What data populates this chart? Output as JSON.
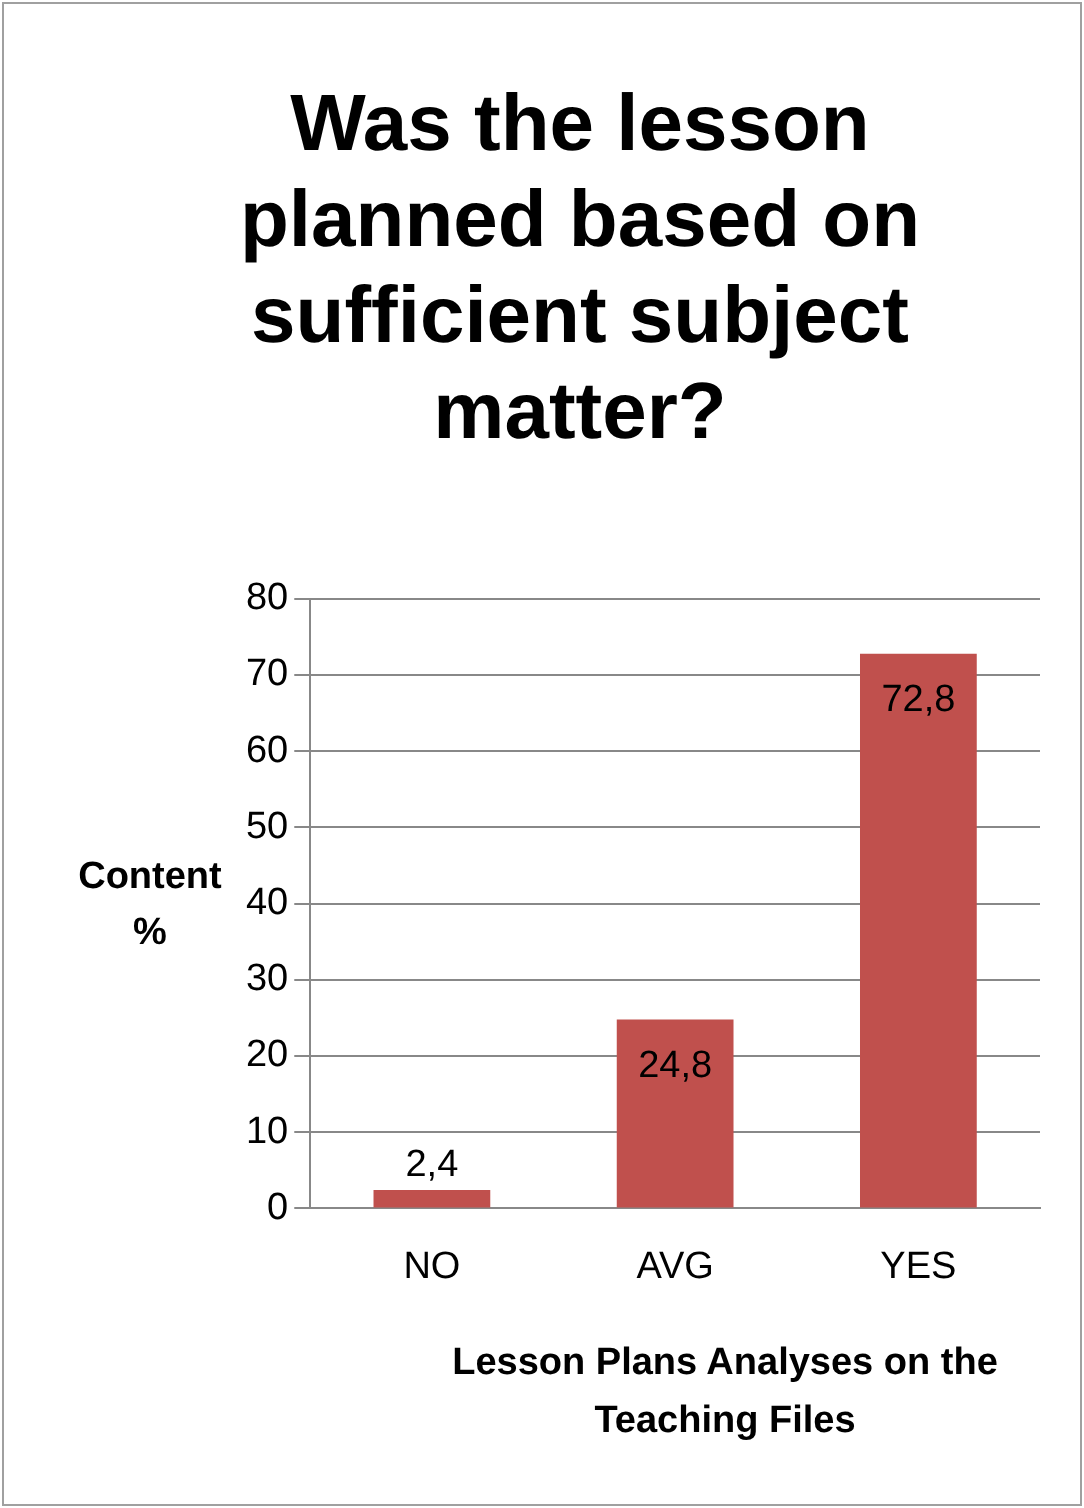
{
  "chart_data": {
    "type": "bar",
    "title": "Was the lesson planned based on sufficient subject matter?",
    "xlabel": "Lesson Plans Analyses on the Teaching Files",
    "ylabel": "Content %",
    "categories": [
      "NO",
      "AVG",
      "YES"
    ],
    "values": [
      2.4,
      24.8,
      72.8
    ],
    "value_labels": [
      "2,4",
      "24,8",
      "72,8"
    ],
    "color": "#c0504d",
    "ylim": [
      0,
      80
    ],
    "yticks": [
      0,
      10,
      20,
      30,
      40,
      50,
      60,
      70,
      80
    ],
    "grid": "y"
  }
}
